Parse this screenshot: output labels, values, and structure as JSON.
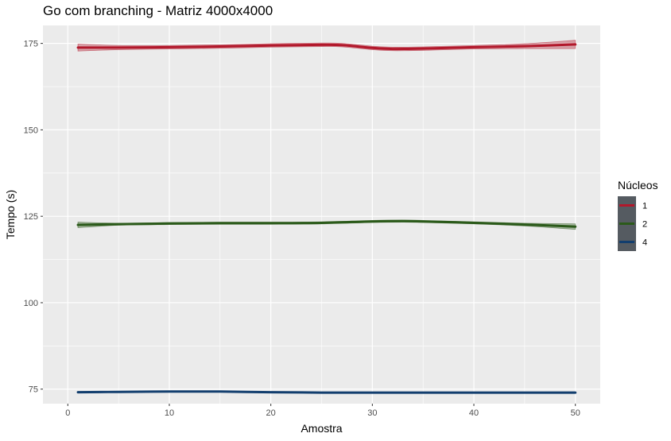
{
  "chart_data": {
    "type": "line",
    "title": "Go com branching - Matriz 4000x4000",
    "xlabel": "Amostra",
    "ylabel": "Tempo (s)",
    "xlim": [
      -2.45,
      52.45
    ],
    "ylim": [
      70.8,
      180.2
    ],
    "xticks": [
      0,
      10,
      20,
      30,
      40,
      50
    ],
    "yticks": [
      75,
      100,
      125,
      150,
      175
    ],
    "grid": true,
    "legend_title": "Núcleos",
    "legend_position": "right",
    "series": [
      {
        "name": "1",
        "color": "#b2182b",
        "x": [
          1,
          5,
          10,
          15,
          20,
          25,
          27,
          30,
          32,
          35,
          40,
          45,
          50
        ],
        "y": [
          173.8,
          173.8,
          173.9,
          174.1,
          174.4,
          174.6,
          174.5,
          173.7,
          173.4,
          173.5,
          173.9,
          174.2,
          174.7
        ],
        "ci_upper": [
          174.8,
          174.4,
          174.4,
          174.6,
          174.9,
          175.1,
          175.0,
          174.2,
          173.9,
          174.0,
          174.4,
          174.9,
          175.9
        ],
        "ci_lower": [
          172.8,
          173.2,
          173.4,
          173.6,
          173.9,
          174.1,
          174.0,
          173.2,
          172.9,
          173.0,
          173.4,
          173.5,
          173.5
        ]
      },
      {
        "name": "2",
        "color": "#2b5a1a",
        "x": [
          1,
          5,
          10,
          15,
          20,
          25,
          30,
          33,
          35,
          40,
          45,
          50
        ],
        "y": [
          122.5,
          122.7,
          122.9,
          123.0,
          123.0,
          123.1,
          123.5,
          123.6,
          123.5,
          123.1,
          122.6,
          122.0
        ],
        "ci_upper": [
          123.3,
          123.0,
          123.2,
          123.3,
          123.3,
          123.4,
          123.8,
          123.9,
          123.8,
          123.4,
          123.0,
          122.8
        ],
        "ci_lower": [
          121.7,
          122.4,
          122.6,
          122.7,
          122.7,
          122.8,
          123.2,
          123.3,
          123.2,
          122.8,
          122.2,
          121.2
        ]
      },
      {
        "name": "4",
        "color": "#123e6e",
        "x": [
          1,
          5,
          10,
          15,
          20,
          25,
          30,
          35,
          40,
          45,
          50
        ],
        "y": [
          74.1,
          74.2,
          74.3,
          74.3,
          74.1,
          74.0,
          74.0,
          74.0,
          74.0,
          74.0,
          74.0
        ],
        "ci_upper": [
          74.3,
          74.35,
          74.45,
          74.45,
          74.25,
          74.15,
          74.15,
          74.15,
          74.15,
          74.15,
          74.2
        ],
        "ci_lower": [
          73.9,
          74.05,
          74.15,
          74.15,
          73.95,
          73.85,
          73.85,
          73.85,
          73.85,
          73.85,
          73.8
        ]
      }
    ]
  }
}
